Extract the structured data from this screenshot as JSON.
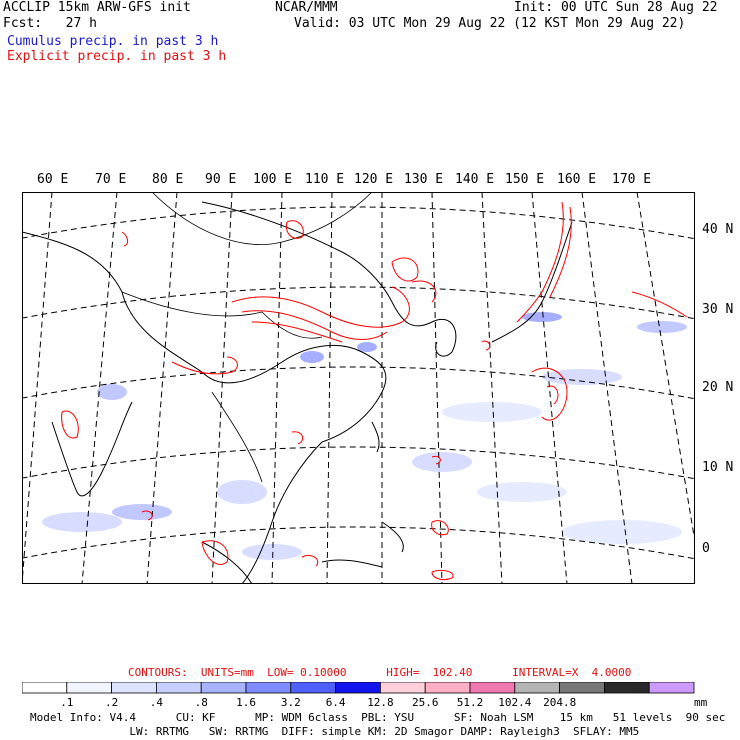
{
  "header": {
    "left1": "ACCLIP 15km ARW-GFS init",
    "left2": "Fcst:   27 h",
    "center": "NCAR/MMM",
    "right1": "Init: 00 UTC Sun 28 Aug 22",
    "right2": "Valid: 03 UTC Mon 29 Aug 22 (12 KST Mon 29 Aug 22)",
    "legend_cumulus": "Cumulus precip. in past 3 h",
    "legend_explicit": "Explicit precip. in past 3 h"
  },
  "map": {
    "lon_labels": [
      "60 E",
      "70 E",
      "80 E",
      "90 E",
      "100 E",
      "110 E",
      "120 E",
      "130 E",
      "140 E",
      "150 E",
      "160 E",
      "170 E"
    ],
    "lat_labels": [
      "40 N",
      "30 N",
      "20 N",
      "10 N",
      "0"
    ]
  },
  "contours_line": {
    "label": "CONTOURS:  UNITS=mm  LOW= 0.10000      HIGH=  102.40      INTERVAL=X  4.0000"
  },
  "colorbar": {
    "ticks": [
      ".1",
      ".2",
      ".4",
      ".8",
      "1.6",
      "3.2",
      "6.4",
      "12.8",
      "25.6",
      "51.2",
      "102.4",
      "204.8"
    ],
    "unit": "mm",
    "colors": [
      "#ffffff",
      "#f2f4ff",
      "#dde3ff",
      "#c8d0ff",
      "#a8b2ff",
      "#7f8cff",
      "#5060ff",
      "#1414ee",
      "#ffd0dc",
      "#ffb0c4",
      "#f078b0",
      "#b4b4b4",
      "#777777",
      "#2a2a2a",
      "#cc99ff"
    ]
  },
  "footer": {
    "line1": "Model Info: V4.4      CU: KF      MP: WDM 6class  PBL: YSU      SF: Noah LSM    15 km   51 levels  90 sec",
    "line2": "               LW: RRTMG   SW: RRTMG  DIFF: simple KM: 2D Smagor DAMP: Rayleigh3  SFLAY: MM5"
  }
}
